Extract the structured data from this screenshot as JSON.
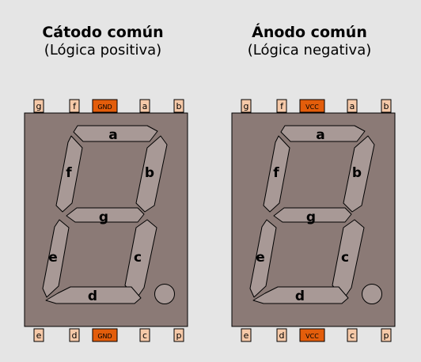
{
  "colors": {
    "background": "#e5e5e5",
    "body_fill": "#8b7a76",
    "segment_fill": "#a89996",
    "pin_fill": "#f6c9a8",
    "common_pin_fill": "#e35d0b",
    "outline": "#000000"
  },
  "displays": [
    {
      "title": "Cátodo común",
      "subtitle": "(Lógica positiva)",
      "top_pins": [
        "g",
        "f",
        "GND",
        "a",
        "b"
      ],
      "bottom_pins": [
        "e",
        "d",
        "GND",
        "c",
        "p"
      ],
      "common_pin_index": 2,
      "segments": [
        "a",
        "b",
        "c",
        "d",
        "e",
        "f",
        "g"
      ],
      "decimal_point": "p"
    },
    {
      "title": "Ánodo común",
      "subtitle": "(Lógica negativa)",
      "top_pins": [
        "g",
        "f",
        "VCC",
        "a",
        "b"
      ],
      "bottom_pins": [
        "e",
        "d",
        "VCC",
        "c",
        "p"
      ],
      "common_pin_index": 2,
      "segments": [
        "a",
        "b",
        "c",
        "d",
        "e",
        "f",
        "g"
      ],
      "decimal_point": "p"
    }
  ]
}
